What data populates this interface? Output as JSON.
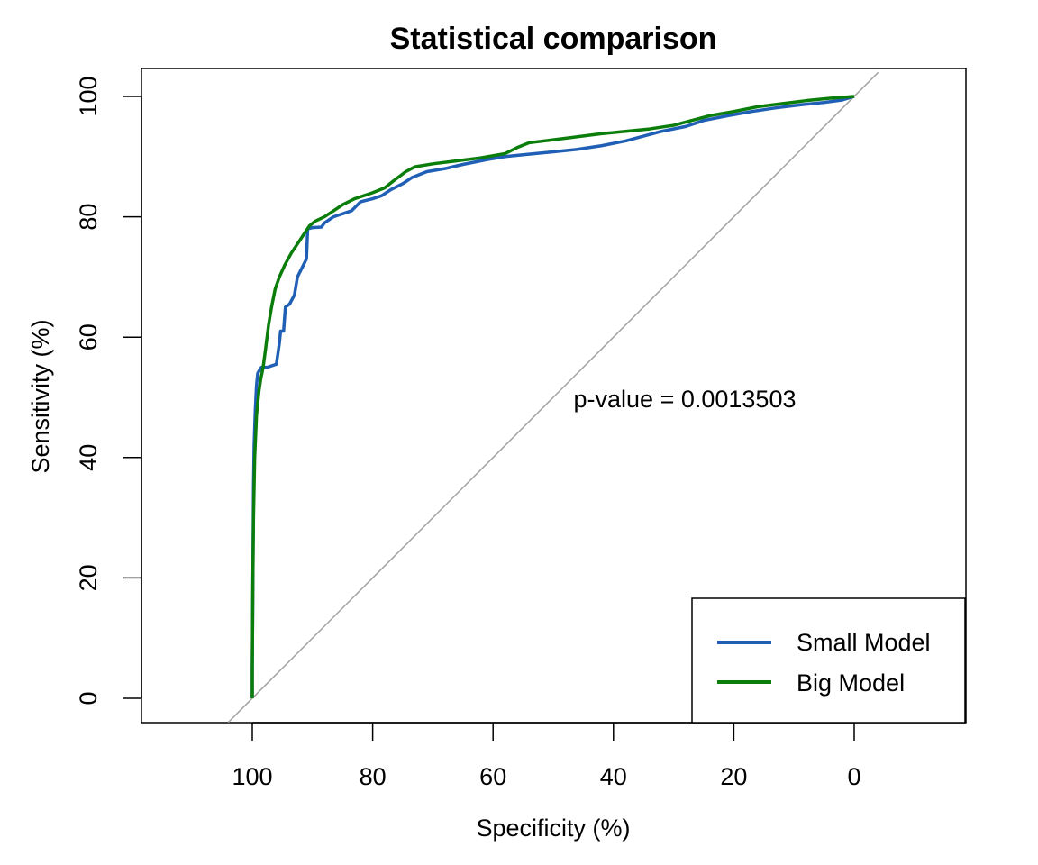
{
  "chart_data": {
    "type": "line",
    "title": "Statistical comparison",
    "xlabel": "Specificity (%)",
    "ylabel": "Sensitivity (%)",
    "x_reversed": true,
    "xlim": [
      100,
      0
    ],
    "ylim": [
      0,
      100
    ],
    "xticks": [
      100,
      80,
      60,
      40,
      20,
      0
    ],
    "yticks": [
      0,
      20,
      40,
      60,
      80,
      100
    ],
    "annotation": "p-value = 0.0013503",
    "reference_line": {
      "from": [
        100,
        0
      ],
      "to": [
        0,
        100
      ],
      "color": "#a0a0a0"
    },
    "legend_position": "bottom-right",
    "series": [
      {
        "name": "Small Model",
        "color": "#1f5fb5",
        "points": [
          [
            100,
            0
          ],
          [
            100,
            5
          ],
          [
            99.9,
            20
          ],
          [
            99.8,
            35
          ],
          [
            99.7,
            42
          ],
          [
            99.5,
            48
          ],
          [
            99.3,
            52
          ],
          [
            99.1,
            54
          ],
          [
            98.8,
            54.5
          ],
          [
            98.5,
            55
          ],
          [
            97.5,
            55
          ],
          [
            96,
            55.5
          ],
          [
            95.5,
            59
          ],
          [
            95.3,
            61
          ],
          [
            94.8,
            61
          ],
          [
            94.5,
            65
          ],
          [
            93.8,
            65.5
          ],
          [
            93,
            67
          ],
          [
            92.5,
            70
          ],
          [
            91.5,
            72
          ],
          [
            91,
            73
          ],
          [
            90.8,
            78
          ],
          [
            90,
            78.2
          ],
          [
            88.5,
            78.3
          ],
          [
            88,
            79
          ],
          [
            86.5,
            80
          ],
          [
            85,
            80.5
          ],
          [
            83.5,
            81
          ],
          [
            82,
            82.5
          ],
          [
            80,
            83
          ],
          [
            78.5,
            83.5
          ],
          [
            77,
            84.5
          ],
          [
            75,
            85.5
          ],
          [
            73.5,
            86.5
          ],
          [
            71,
            87.5
          ],
          [
            68,
            88
          ],
          [
            65,
            88.7
          ],
          [
            61,
            89.5
          ],
          [
            58,
            90
          ],
          [
            55,
            90.3
          ],
          [
            50,
            90.8
          ],
          [
            46,
            91.2
          ],
          [
            42,
            91.8
          ],
          [
            38,
            92.6
          ],
          [
            35,
            93.4
          ],
          [
            32,
            94.2
          ],
          [
            28,
            95
          ],
          [
            25,
            96
          ],
          [
            21,
            96.8
          ],
          [
            17,
            97.5
          ],
          [
            13,
            98.1
          ],
          [
            9,
            98.6
          ],
          [
            5,
            99
          ],
          [
            2,
            99.4
          ],
          [
            0,
            100
          ]
        ]
      },
      {
        "name": "Big Model",
        "color": "#0a7d0a",
        "points": [
          [
            100,
            0
          ],
          [
            100,
            4
          ],
          [
            99.9,
            20
          ],
          [
            99.8,
            30
          ],
          [
            99.6,
            40
          ],
          [
            99.3,
            47
          ],
          [
            98.9,
            51
          ],
          [
            98.6,
            53
          ],
          [
            98.2,
            55
          ],
          [
            97.8,
            58
          ],
          [
            97.3,
            62
          ],
          [
            96.8,
            65
          ],
          [
            96.2,
            68
          ],
          [
            95.5,
            70
          ],
          [
            94.6,
            72
          ],
          [
            93.5,
            74
          ],
          [
            92.5,
            75.5
          ],
          [
            91.5,
            77
          ],
          [
            90.5,
            78.5
          ],
          [
            89.5,
            79.3
          ],
          [
            88,
            80
          ],
          [
            86.5,
            81
          ],
          [
            85,
            82
          ],
          [
            83,
            83
          ],
          [
            80,
            84
          ],
          [
            78,
            84.8
          ],
          [
            76.5,
            86
          ],
          [
            74.5,
            87.5
          ],
          [
            73,
            88.3
          ],
          [
            70,
            88.8
          ],
          [
            66,
            89.3
          ],
          [
            62,
            89.8
          ],
          [
            58,
            90.5
          ],
          [
            56,
            91.5
          ],
          [
            54,
            92.3
          ],
          [
            50,
            92.8
          ],
          [
            46,
            93.3
          ],
          [
            42,
            93.8
          ],
          [
            38,
            94.2
          ],
          [
            34,
            94.6
          ],
          [
            30,
            95.2
          ],
          [
            27,
            96
          ],
          [
            24,
            96.8
          ],
          [
            20,
            97.5
          ],
          [
            16,
            98.3
          ],
          [
            12,
            98.8
          ],
          [
            8,
            99.3
          ],
          [
            4,
            99.7
          ],
          [
            0,
            100
          ]
        ]
      }
    ]
  }
}
